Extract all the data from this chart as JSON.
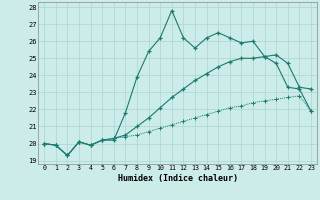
{
  "xlabel": "Humidex (Indice chaleur)",
  "xlim": [
    -0.5,
    23.5
  ],
  "ylim": [
    18.8,
    28.3
  ],
  "yticks": [
    19,
    20,
    21,
    22,
    23,
    24,
    25,
    26,
    27,
    28
  ],
  "xticks": [
    0,
    1,
    2,
    3,
    4,
    5,
    6,
    7,
    8,
    9,
    10,
    11,
    12,
    13,
    14,
    15,
    16,
    17,
    18,
    19,
    20,
    21,
    22,
    23
  ],
  "bg_color": "#ccecea",
  "grid_color": "#b0d8d5",
  "line_color": "#1a7a6e",
  "line1_y": [
    20.0,
    19.9,
    19.3,
    20.1,
    19.9,
    20.2,
    20.2,
    21.8,
    23.9,
    25.4,
    26.2,
    27.8,
    26.2,
    25.6,
    26.2,
    26.5,
    26.2,
    25.9,
    26.0,
    25.1,
    25.2,
    24.7,
    23.3,
    23.2
  ],
  "line2_y": [
    20.0,
    19.9,
    19.3,
    20.1,
    19.9,
    20.2,
    20.3,
    20.5,
    21.0,
    21.5,
    22.1,
    22.7,
    23.2,
    23.7,
    24.1,
    24.5,
    24.8,
    25.0,
    25.0,
    25.1,
    24.7,
    23.3,
    23.2,
    21.9
  ],
  "line3_y": [
    20.0,
    19.9,
    19.3,
    20.1,
    19.9,
    20.2,
    20.3,
    20.4,
    20.5,
    20.7,
    20.9,
    21.1,
    21.3,
    21.5,
    21.7,
    21.9,
    22.1,
    22.2,
    22.4,
    22.5,
    22.6,
    22.7,
    22.8,
    21.9
  ]
}
